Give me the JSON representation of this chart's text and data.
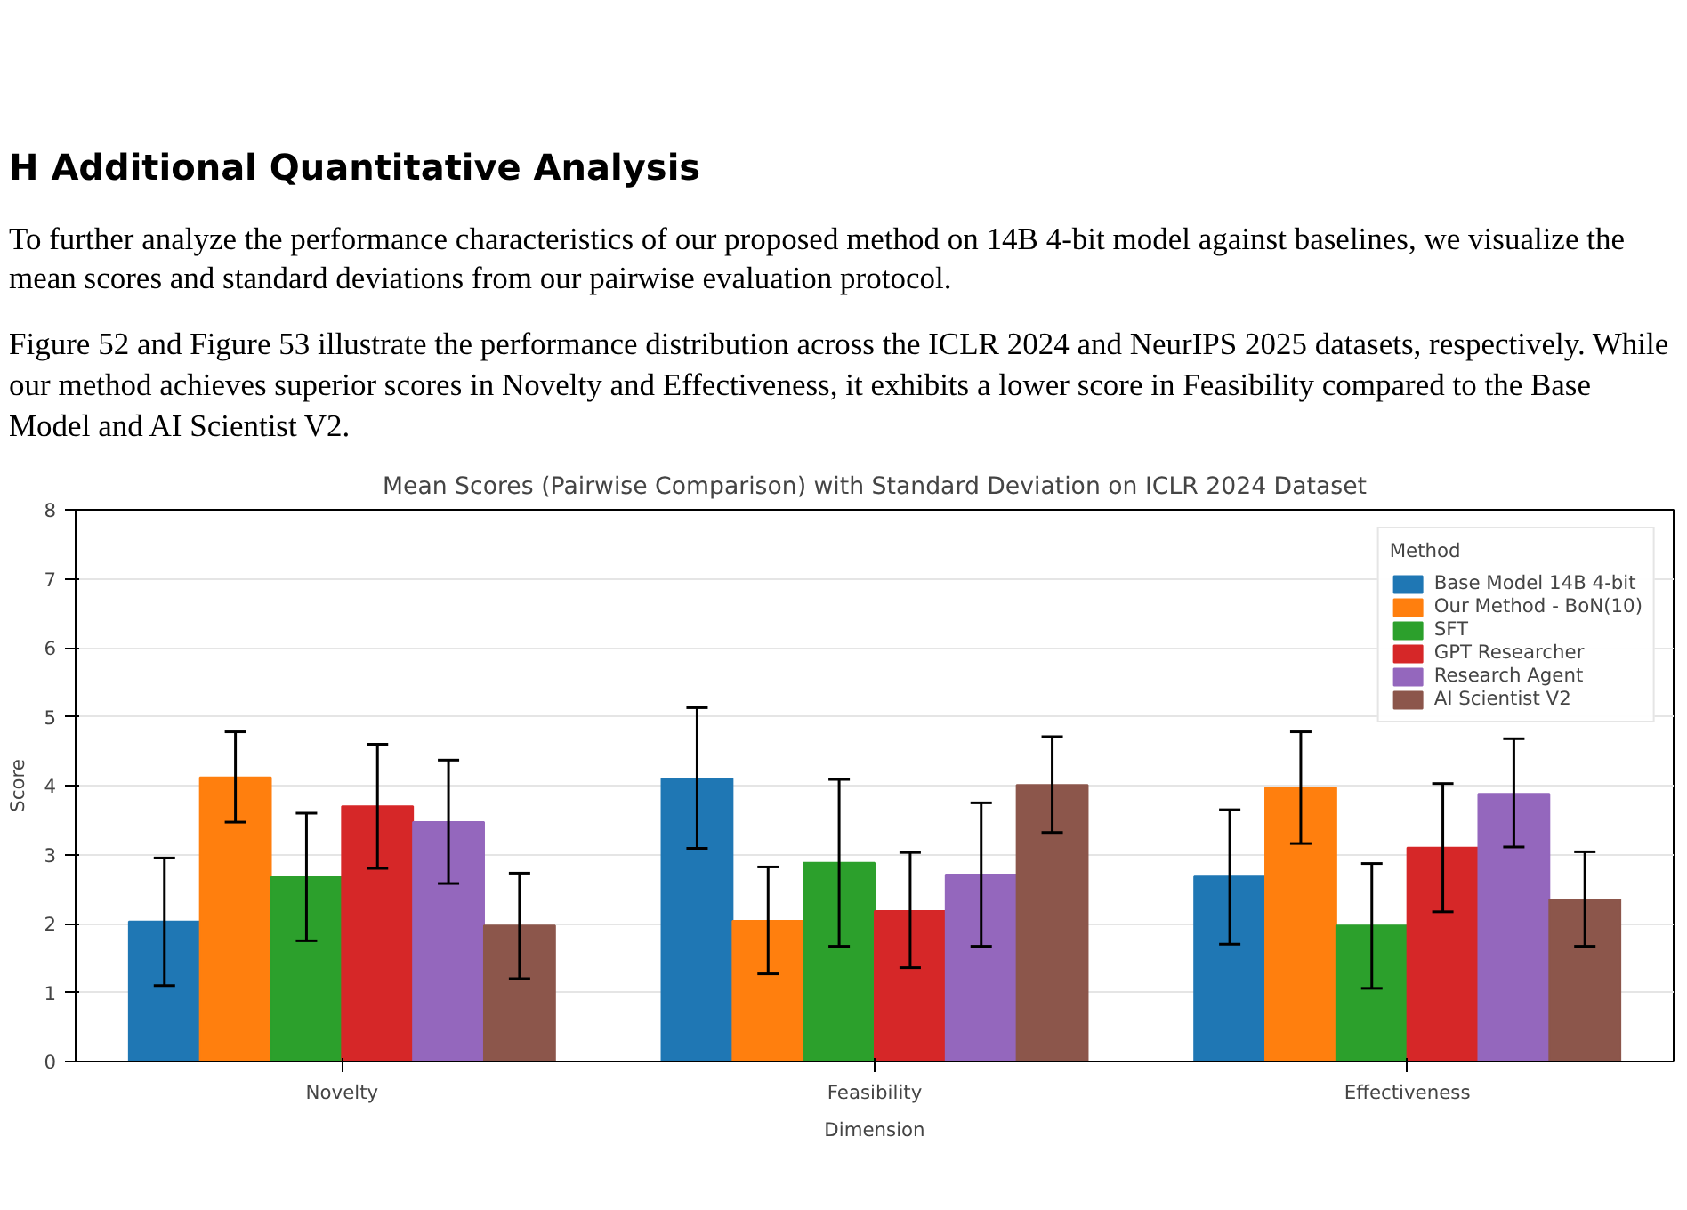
{
  "chart_data": {
    "type": "bar",
    "title": "Mean Scores (Pairwise Comparison) with Standard Deviation on ICLR 2024 Dataset",
    "xlabel": "Dimension",
    "ylabel": "Score",
    "legend_title": "Method",
    "annotations": [
      "H    Additional Quantitative Analysis",
      "To further analyze the performance characteristics of our proposed method on 14B 4-bit model against baselines, we visualize the mean scores and standard deviations from our pairwise evaluation protocol.",
      "Figure 52 and Figure 53 illustrate the performance distribution across the ICLR 2024 and NeurIPS 2025 datasets, respectively. While our method achieves superior scores in Novelty and Effectiveness, it exhibits a lower score in Feasibility compared to the Base Model and AI Scientist V2."
    ],
    "categories": [
      "Novelty",
      "Feasibility",
      "Effectiveness"
    ],
    "ylim": [
      0,
      8
    ],
    "yticks": [
      0,
      1,
      2,
      3,
      4,
      5,
      6,
      7,
      8
    ],
    "grid": "y",
    "legend": "top right",
    "series": [
      {
        "name": "Base Model 14B 4-bit",
        "color": "#1f77b4",
        "values": [
          2.03,
          4.1,
          2.68
        ],
        "errors": [
          [
            1.1,
            2.95
          ],
          [
            3.09,
            5.13
          ],
          [
            1.7,
            3.65
          ]
        ]
      },
      {
        "name": "Our Method - BoN(10)",
        "color": "#ff7f0e",
        "values": [
          4.12,
          2.04,
          3.97
        ],
        "errors": [
          [
            3.47,
            4.78
          ],
          [
            1.27,
            2.82
          ],
          [
            3.16,
            4.78
          ]
        ]
      },
      {
        "name": "SFT",
        "color": "#2ca02c",
        "values": [
          2.67,
          2.88,
          1.97
        ],
        "errors": [
          [
            1.75,
            3.6
          ],
          [
            1.67,
            4.09
          ],
          [
            1.06,
            2.87
          ]
        ]
      },
      {
        "name": "GPT Researcher",
        "color": "#d62728",
        "values": [
          3.7,
          2.18,
          3.1
        ],
        "errors": [
          [
            2.8,
            4.6
          ],
          [
            1.36,
            3.03
          ],
          [
            2.17,
            4.03
          ]
        ]
      },
      {
        "name": "Research Agent",
        "color": "#9467bd",
        "values": [
          3.47,
          2.71,
          3.88
        ],
        "errors": [
          [
            2.58,
            4.37
          ],
          [
            1.67,
            3.75
          ],
          [
            3.11,
            4.68
          ]
        ]
      },
      {
        "name": "AI Scientist V2",
        "color": "#8c564b",
        "values": [
          1.97,
          4.01,
          2.35
        ],
        "errors": [
          [
            1.2,
            2.73
          ],
          [
            3.32,
            4.71
          ],
          [
            1.67,
            3.04
          ]
        ]
      }
    ]
  }
}
